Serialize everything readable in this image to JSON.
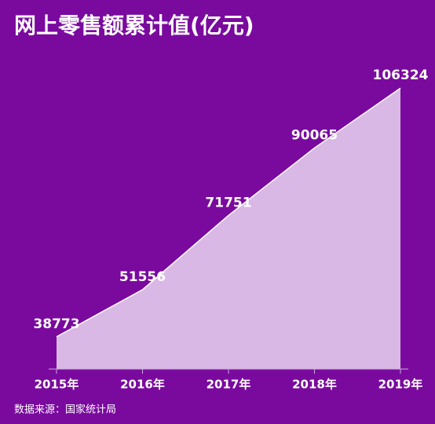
{
  "chart_data": {
    "type": "area",
    "title": "网上零售额累计值(亿元)",
    "categories": [
      "2015年",
      "2016年",
      "2017年",
      "2018年",
      "2019年"
    ],
    "values": [
      38773,
      51556,
      71751,
      90065,
      106324
    ],
    "color": "#d9b8e5",
    "line_color": "#ffffff",
    "ylim": [
      30000,
      110000
    ],
    "source": "数据来源：国家统计局"
  }
}
